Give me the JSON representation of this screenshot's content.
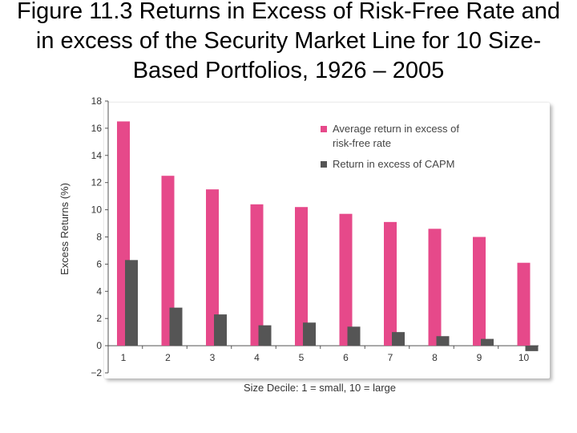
{
  "slide": {
    "title": "Figure 11.3 Returns in Excess of Risk-Free Rate and in excess of the Security Market Line for 10 Size-Based Portfolios, 1926 – 2005"
  },
  "chart_data": {
    "type": "bar",
    "categories": [
      "1",
      "2",
      "3",
      "4",
      "5",
      "6",
      "7",
      "8",
      "9",
      "10"
    ],
    "series": [
      {
        "name": "Average return in excess of risk-free rate",
        "color": "#e6498a",
        "values": [
          16.5,
          12.5,
          11.5,
          10.4,
          10.2,
          9.7,
          9.1,
          8.6,
          8.0,
          6.1
        ]
      },
      {
        "name": "Return in excess of CAPM",
        "color": "#555555",
        "values": [
          6.3,
          2.8,
          2.3,
          1.5,
          1.7,
          1.4,
          1.0,
          0.7,
          0.5,
          -0.4
        ]
      }
    ],
    "xlabel": "Size Decile: 1 = small, 10 = large",
    "ylabel": "Excess Returns (%)",
    "ylim": [
      -2,
      18
    ],
    "yticks": [
      "−2",
      "0",
      "2",
      "4",
      "6",
      "8",
      "10",
      "12",
      "14",
      "16",
      "18"
    ],
    "grid": false,
    "legend": {
      "position": "top-right",
      "entries": [
        [
          "Average return in excess of",
          "risk-free rate"
        ],
        [
          "Return in excess of CAPM"
        ]
      ]
    }
  }
}
